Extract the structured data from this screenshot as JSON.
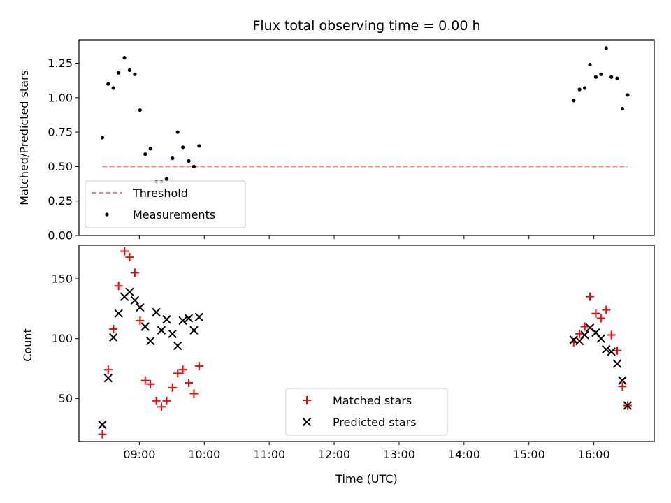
{
  "chart_data": [
    {
      "type": "scatter",
      "title": "Flux total observing time = 0.00 h",
      "ylabel": "Matched/Predicted stars",
      "xlabel": "",
      "x_unit": "hours UTC",
      "xlim": [
        8.07,
        16.93
      ],
      "ylim": [
        0.0,
        1.42
      ],
      "xticks": [
        "09:00",
        "10:00",
        "11:00",
        "12:00",
        "13:00",
        "14:00",
        "15:00",
        "16:00"
      ],
      "yticks": [
        "0.00",
        "0.25",
        "0.50",
        "0.75",
        "1.00",
        "1.25"
      ],
      "legend": {
        "position": "lower-left",
        "entries": [
          "Threshold",
          "Measurements"
        ]
      },
      "threshold": {
        "name": "Threshold",
        "value": 0.5,
        "x_range": [
          8.43,
          16.52
        ],
        "color": "#ff7f7f"
      },
      "series": [
        {
          "name": "Measurements",
          "color": "#000000",
          "points": [
            [
              8.43,
              0.71
            ],
            [
              8.52,
              1.1
            ],
            [
              8.6,
              1.07
            ],
            [
              8.68,
              1.18
            ],
            [
              8.77,
              1.29
            ],
            [
              8.85,
              1.2
            ],
            [
              8.93,
              1.17
            ],
            [
              9.01,
              0.91
            ],
            [
              9.09,
              0.59
            ],
            [
              9.17,
              0.63
            ],
            [
              9.26,
              0.39
            ],
            [
              9.34,
              0.39
            ],
            [
              9.42,
              0.41
            ],
            [
              9.51,
              0.56
            ],
            [
              9.59,
              0.75
            ],
            [
              9.67,
              0.64
            ],
            [
              9.76,
              0.54
            ],
            [
              9.84,
              0.5
            ],
            [
              9.92,
              0.65
            ],
            [
              15.69,
              0.98
            ],
            [
              15.78,
              1.06
            ],
            [
              15.86,
              1.07
            ],
            [
              15.94,
              1.24
            ],
            [
              16.03,
              1.15
            ],
            [
              16.11,
              1.17
            ],
            [
              16.19,
              1.36
            ],
            [
              16.27,
              1.15
            ],
            [
              16.36,
              1.14
            ],
            [
              16.44,
              0.92
            ],
            [
              16.52,
              1.02
            ]
          ]
        }
      ]
    },
    {
      "type": "scatter",
      "title": "",
      "ylabel": "Count",
      "xlabel": "Time (UTC)",
      "x_unit": "hours UTC",
      "xlim": [
        8.07,
        16.93
      ],
      "ylim": [
        14,
        178
      ],
      "xticks": [
        "09:00",
        "10:00",
        "11:00",
        "12:00",
        "13:00",
        "14:00",
        "15:00",
        "16:00"
      ],
      "yticks": [
        "50",
        "100",
        "150"
      ],
      "legend": {
        "position": "lower-center",
        "entries": [
          "Matched stars",
          "Predicted stars"
        ]
      },
      "series": [
        {
          "name": "Matched stars",
          "color": "#ff0000",
          "marker": "+",
          "points": [
            [
              8.43,
              20
            ],
            [
              8.52,
              74
            ],
            [
              8.6,
              108
            ],
            [
              8.68,
              144
            ],
            [
              8.77,
              173
            ],
            [
              8.85,
              168
            ],
            [
              8.93,
              155
            ],
            [
              9.01,
              115
            ],
            [
              9.09,
              65
            ],
            [
              9.17,
              62
            ],
            [
              9.26,
              48
            ],
            [
              9.34,
              43
            ],
            [
              9.42,
              48
            ],
            [
              9.51,
              59
            ],
            [
              9.59,
              71
            ],
            [
              9.67,
              74
            ],
            [
              9.76,
              63
            ],
            [
              9.84,
              54
            ],
            [
              9.92,
              77
            ],
            [
              15.69,
              97
            ],
            [
              15.78,
              104
            ],
            [
              15.86,
              110
            ],
            [
              15.94,
              135
            ],
            [
              16.03,
              121
            ],
            [
              16.11,
              117
            ],
            [
              16.19,
              124
            ],
            [
              16.27,
              103
            ],
            [
              16.36,
              90
            ],
            [
              16.44,
              60
            ],
            [
              16.52,
              44
            ]
          ]
        },
        {
          "name": "Predicted stars",
          "color": "#000000",
          "marker": "x",
          "points": [
            [
              8.43,
              28
            ],
            [
              8.52,
              67
            ],
            [
              8.6,
              101
            ],
            [
              8.68,
              121
            ],
            [
              8.77,
              135
            ],
            [
              8.85,
              139
            ],
            [
              8.93,
              132
            ],
            [
              9.01,
              126
            ],
            [
              9.09,
              110
            ],
            [
              9.17,
              98
            ],
            [
              9.26,
              122
            ],
            [
              9.34,
              107
            ],
            [
              9.42,
              116
            ],
            [
              9.51,
              104
            ],
            [
              9.59,
              94
            ],
            [
              9.67,
              115
            ],
            [
              9.76,
              117
            ],
            [
              9.84,
              107
            ],
            [
              9.92,
              118
            ],
            [
              15.69,
              99
            ],
            [
              15.78,
              98
            ],
            [
              15.86,
              103
            ],
            [
              15.94,
              109
            ],
            [
              16.03,
              105
            ],
            [
              16.11,
              100
            ],
            [
              16.19,
              91
            ],
            [
              16.27,
              89
            ],
            [
              16.36,
              79
            ],
            [
              16.44,
              65
            ],
            [
              16.52,
              44
            ]
          ]
        }
      ]
    }
  ]
}
